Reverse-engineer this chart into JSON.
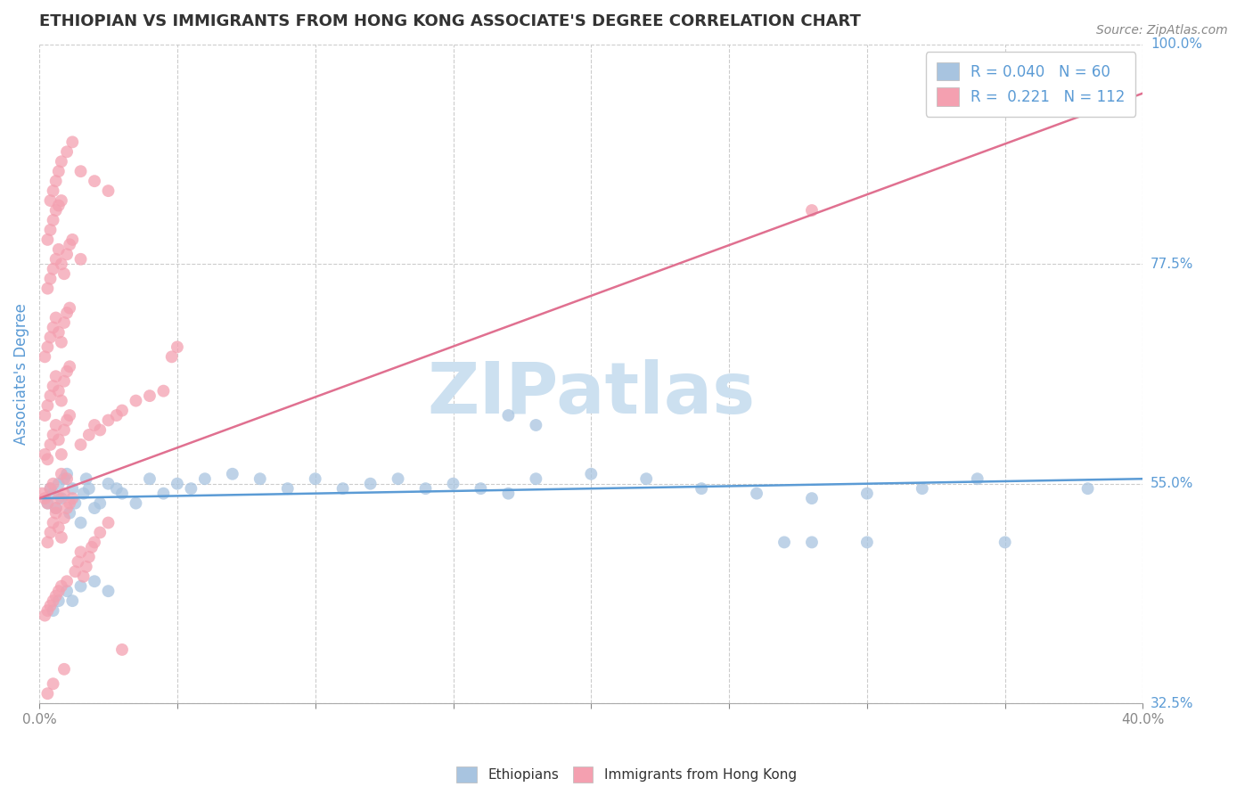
{
  "title": "ETHIOPIAN VS IMMIGRANTS FROM HONG KONG ASSOCIATE'S DEGREE CORRELATION CHART",
  "source_text": "Source: ZipAtlas.com",
  "ylabel": "Associate's Degree",
  "xlim": [
    0.0,
    0.4
  ],
  "ylim": [
    0.325,
    1.0
  ],
  "ytick_positions": [
    0.325,
    0.55,
    0.775,
    1.0
  ],
  "ytick_labels": [
    "32.5%",
    "55.0%",
    "77.5%",
    "100.0%"
  ],
  "xtick_positions": [
    0.0,
    0.05,
    0.1,
    0.15,
    0.2,
    0.25,
    0.3,
    0.35,
    0.4
  ],
  "blue_R": 0.04,
  "blue_N": 60,
  "pink_R": 0.221,
  "pink_N": 112,
  "blue_color": "#a8c4e0",
  "pink_color": "#f4a0b0",
  "blue_line_color": "#5b9bd5",
  "pink_line_color": "#e07090",
  "watermark_color": "#cce0f0",
  "background_color": "#ffffff",
  "grid_color": "#cccccc",
  "title_color": "#333333",
  "axis_label_color": "#5b9bd5",
  "legend_R_color": "#5b9bd5",
  "blue_line_x0": 0.0,
  "blue_line_y0": 0.535,
  "blue_line_x1": 0.4,
  "blue_line_y1": 0.555,
  "pink_line_x0": 0.0,
  "pink_line_y0": 0.535,
  "pink_line_x1": 0.4,
  "pink_line_y1": 0.95,
  "blue_scatter_x": [
    0.003,
    0.004,
    0.005,
    0.006,
    0.007,
    0.008,
    0.009,
    0.01,
    0.011,
    0.012,
    0.013,
    0.015,
    0.016,
    0.017,
    0.018,
    0.02,
    0.022,
    0.025,
    0.028,
    0.03,
    0.035,
    0.04,
    0.045,
    0.05,
    0.055,
    0.06,
    0.07,
    0.08,
    0.09,
    0.1,
    0.11,
    0.12,
    0.13,
    0.14,
    0.15,
    0.16,
    0.17,
    0.18,
    0.2,
    0.22,
    0.24,
    0.26,
    0.28,
    0.3,
    0.32,
    0.34,
    0.005,
    0.007,
    0.01,
    0.012,
    0.015,
    0.02,
    0.025,
    0.17,
    0.18,
    0.27,
    0.28,
    0.3,
    0.35,
    0.38
  ],
  "blue_scatter_y": [
    0.53,
    0.545,
    0.54,
    0.525,
    0.55,
    0.535,
    0.555,
    0.56,
    0.52,
    0.545,
    0.53,
    0.51,
    0.54,
    0.555,
    0.545,
    0.525,
    0.53,
    0.55,
    0.545,
    0.54,
    0.53,
    0.555,
    0.54,
    0.55,
    0.545,
    0.555,
    0.56,
    0.555,
    0.545,
    0.555,
    0.545,
    0.55,
    0.555,
    0.545,
    0.55,
    0.545,
    0.54,
    0.555,
    0.56,
    0.555,
    0.545,
    0.54,
    0.535,
    0.54,
    0.545,
    0.555,
    0.42,
    0.43,
    0.44,
    0.43,
    0.445,
    0.45,
    0.44,
    0.62,
    0.61,
    0.49,
    0.49,
    0.49,
    0.49,
    0.545
  ],
  "pink_scatter_x": [
    0.001,
    0.002,
    0.003,
    0.004,
    0.005,
    0.006,
    0.007,
    0.008,
    0.009,
    0.01,
    0.002,
    0.003,
    0.004,
    0.005,
    0.006,
    0.007,
    0.008,
    0.009,
    0.01,
    0.011,
    0.002,
    0.003,
    0.004,
    0.005,
    0.006,
    0.007,
    0.008,
    0.009,
    0.01,
    0.011,
    0.002,
    0.003,
    0.004,
    0.005,
    0.006,
    0.007,
    0.008,
    0.009,
    0.01,
    0.011,
    0.003,
    0.004,
    0.005,
    0.006,
    0.007,
    0.008,
    0.009,
    0.01,
    0.011,
    0.012,
    0.003,
    0.004,
    0.005,
    0.006,
    0.007,
    0.008,
    0.009,
    0.01,
    0.011,
    0.012,
    0.013,
    0.014,
    0.015,
    0.016,
    0.017,
    0.018,
    0.019,
    0.02,
    0.022,
    0.025,
    0.015,
    0.018,
    0.02,
    0.022,
    0.025,
    0.028,
    0.03,
    0.035,
    0.04,
    0.045,
    0.004,
    0.005,
    0.006,
    0.007,
    0.008,
    0.01,
    0.012,
    0.015,
    0.02,
    0.025,
    0.002,
    0.003,
    0.004,
    0.005,
    0.006,
    0.007,
    0.008,
    0.01,
    0.03,
    0.28,
    0.003,
    0.005,
    0.048,
    0.05,
    0.003,
    0.004,
    0.005,
    0.006,
    0.007,
    0.008,
    0.009,
    0.015
  ],
  "pink_scatter_y": [
    0.54,
    0.535,
    0.53,
    0.545,
    0.55,
    0.525,
    0.535,
    0.56,
    0.54,
    0.555,
    0.58,
    0.575,
    0.59,
    0.6,
    0.61,
    0.595,
    0.58,
    0.605,
    0.615,
    0.62,
    0.62,
    0.63,
    0.64,
    0.65,
    0.66,
    0.645,
    0.635,
    0.655,
    0.665,
    0.67,
    0.68,
    0.69,
    0.7,
    0.71,
    0.72,
    0.705,
    0.695,
    0.715,
    0.725,
    0.73,
    0.75,
    0.76,
    0.77,
    0.78,
    0.79,
    0.775,
    0.765,
    0.785,
    0.795,
    0.8,
    0.49,
    0.5,
    0.51,
    0.52,
    0.505,
    0.495,
    0.515,
    0.525,
    0.53,
    0.535,
    0.46,
    0.47,
    0.48,
    0.455,
    0.465,
    0.475,
    0.485,
    0.49,
    0.5,
    0.51,
    0.59,
    0.6,
    0.61,
    0.605,
    0.615,
    0.62,
    0.625,
    0.635,
    0.64,
    0.645,
    0.84,
    0.85,
    0.86,
    0.87,
    0.88,
    0.89,
    0.9,
    0.87,
    0.86,
    0.85,
    0.415,
    0.42,
    0.425,
    0.43,
    0.435,
    0.44,
    0.445,
    0.45,
    0.38,
    0.83,
    0.335,
    0.345,
    0.68,
    0.69,
    0.8,
    0.81,
    0.82,
    0.83,
    0.835,
    0.84,
    0.36,
    0.78
  ]
}
